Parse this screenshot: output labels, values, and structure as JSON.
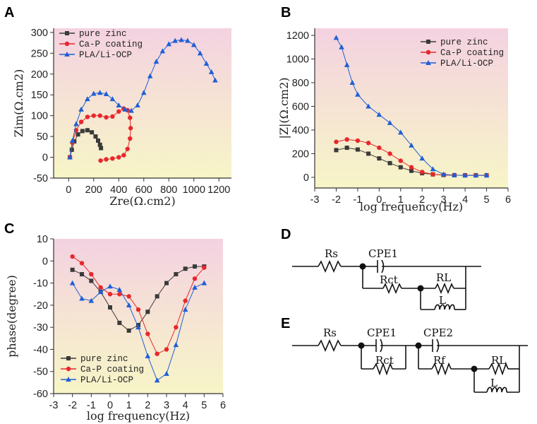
{
  "colors": {
    "zinc": "#3a3a3a",
    "cap": "#e8272c",
    "pla": "#1f5fd6",
    "bg_top": "#f4d2e1",
    "bg_bottom": "#f7f5c7"
  },
  "legend": [
    "pure zinc",
    "Ca-P coating",
    "PLA/Li-OCP"
  ],
  "circuit_d": {
    "letter": "D",
    "labels": [
      "Rs",
      "CPE1",
      "Rct",
      "RL",
      "L"
    ]
  },
  "circuit_e": {
    "letter": "E",
    "labels": [
      "Rs",
      "CPE1",
      "CPE2",
      "Rct",
      "Rf",
      "RL",
      "L"
    ]
  },
  "chart_data": [
    {
      "panel": "A",
      "type": "scatter",
      "xlabel": "Zre(Ω.cm2)",
      "ylabel": "Zim(Ω.cm2)",
      "xlim": [
        -120,
        1300
      ],
      "ylim": [
        -50,
        310
      ],
      "xticks": [
        0,
        200,
        400,
        600,
        800,
        1000,
        1200
      ],
      "yticks": [
        -50,
        0,
        50,
        100,
        150,
        200,
        250,
        300
      ],
      "series": [
        {
          "name": "pure zinc",
          "marker": "square",
          "points": [
            [
              10,
              0
            ],
            [
              25,
              18
            ],
            [
              45,
              38
            ],
            [
              75,
              55
            ],
            [
              110,
              63
            ],
            [
              150,
              65
            ],
            [
              185,
              60
            ],
            [
              215,
              50
            ],
            [
              235,
              40
            ],
            [
              250,
              30
            ],
            [
              258,
              22
            ]
          ]
        },
        {
          "name": "Ca-P coating",
          "marker": "circle",
          "points": [
            [
              10,
              0
            ],
            [
              30,
              35
            ],
            [
              60,
              65
            ],
            [
              100,
              85
            ],
            [
              150,
              97
            ],
            [
              200,
              100
            ],
            [
              250,
              100
            ],
            [
              300,
              96
            ],
            [
              350,
              98
            ],
            [
              400,
              110
            ],
            [
              440,
              117
            ],
            [
              470,
              113
            ],
            [
              490,
              95
            ],
            [
              495,
              70
            ],
            [
              490,
              45
            ],
            [
              470,
              20
            ],
            [
              440,
              5
            ],
            [
              400,
              0
            ],
            [
              350,
              -3
            ],
            [
              300,
              -5
            ],
            [
              255,
              -8
            ]
          ]
        },
        {
          "name": "PLA/Li-OCP",
          "marker": "triangle",
          "points": [
            [
              10,
              0
            ],
            [
              30,
              40
            ],
            [
              60,
              80
            ],
            [
              100,
              115
            ],
            [
              150,
              140
            ],
            [
              200,
              153
            ],
            [
              250,
              155
            ],
            [
              300,
              152
            ],
            [
              350,
              140
            ],
            [
              400,
              125
            ],
            [
              450,
              115
            ],
            [
              500,
              112
            ],
            [
              550,
              125
            ],
            [
              600,
              155
            ],
            [
              650,
              195
            ],
            [
              700,
              230
            ],
            [
              750,
              255
            ],
            [
              800,
              272
            ],
            [
              850,
              280
            ],
            [
              900,
              282
            ],
            [
              950,
              280
            ],
            [
              1000,
              270
            ],
            [
              1050,
              250
            ],
            [
              1100,
              225
            ],
            [
              1140,
              205
            ],
            [
              1170,
              185
            ]
          ]
        }
      ]
    },
    {
      "panel": "B",
      "type": "scatter",
      "xlabel": "log frequency(Hz)",
      "ylabel": "|Z|(Ω.cm2)",
      "xlim": [
        -3,
        6
      ],
      "ylim": [
        -90,
        1260
      ],
      "xticks": [
        -3,
        -2,
        -1,
        0,
        1,
        2,
        3,
        4,
        5,
        6
      ],
      "yticks": [
        0,
        200,
        400,
        600,
        800,
        1000,
        1200
      ],
      "series": [
        {
          "name": "pure zinc",
          "marker": "square",
          "points": [
            [
              -2,
              230
            ],
            [
              -1.5,
              250
            ],
            [
              -1,
              235
            ],
            [
              -0.5,
              200
            ],
            [
              0,
              160
            ],
            [
              0.5,
              120
            ],
            [
              1,
              85
            ],
            [
              1.5,
              55
            ],
            [
              2,
              35
            ],
            [
              2.5,
              25
            ],
            [
              3,
              20
            ],
            [
              3.5,
              18
            ],
            [
              4,
              17
            ],
            [
              4.5,
              17
            ],
            [
              5,
              17
            ]
          ]
        },
        {
          "name": "Ca-P coating",
          "marker": "circle",
          "points": [
            [
              -2,
              300
            ],
            [
              -1.5,
              320
            ],
            [
              -1,
              310
            ],
            [
              -0.5,
              290
            ],
            [
              0,
              250
            ],
            [
              0.5,
              200
            ],
            [
              1,
              140
            ],
            [
              1.5,
              85
            ],
            [
              2,
              45
            ],
            [
              2.5,
              25
            ],
            [
              3,
              20
            ],
            [
              3.5,
              18
            ],
            [
              4,
              17
            ],
            [
              4.5,
              17
            ],
            [
              5,
              17
            ]
          ]
        },
        {
          "name": "PLA/Li-OCP",
          "marker": "triangle",
          "points": [
            [
              -2,
              1180
            ],
            [
              -1.75,
              1100
            ],
            [
              -1.5,
              950
            ],
            [
              -1.25,
              800
            ],
            [
              -1,
              700
            ],
            [
              -0.5,
              600
            ],
            [
              0,
              530
            ],
            [
              0.5,
              460
            ],
            [
              1,
              380
            ],
            [
              1.5,
              270
            ],
            [
              2,
              160
            ],
            [
              2.5,
              70
            ],
            [
              3,
              25
            ],
            [
              3.5,
              18
            ],
            [
              4,
              17
            ],
            [
              4.5,
              17
            ],
            [
              5,
              17
            ]
          ]
        }
      ]
    },
    {
      "panel": "C",
      "type": "scatter",
      "xlabel": "log frequency(Hz)",
      "ylabel": "phase(degree)",
      "xlim": [
        -3,
        6
      ],
      "ylim": [
        -60,
        10
      ],
      "xticks": [
        -3,
        -2,
        -1,
        0,
        1,
        2,
        3,
        4,
        5,
        6
      ],
      "yticks": [
        10,
        0,
        -10,
        -20,
        -30,
        -40,
        -50,
        -60
      ],
      "series": [
        {
          "name": "pure zinc",
          "marker": "square",
          "points": [
            [
              -2,
              -4
            ],
            [
              -1.5,
              -6
            ],
            [
              -1,
              -9
            ],
            [
              -0.5,
              -14
            ],
            [
              0,
              -21
            ],
            [
              0.5,
              -28
            ],
            [
              1,
              -31.5
            ],
            [
              1.5,
              -29
            ],
            [
              2,
              -23
            ],
            [
              2.5,
              -16
            ],
            [
              3,
              -10
            ],
            [
              3.5,
              -6
            ],
            [
              4,
              -3.5
            ],
            [
              4.5,
              -2.5
            ],
            [
              5,
              -2.5
            ]
          ]
        },
        {
          "name": "Ca-P coating",
          "marker": "circle",
          "points": [
            [
              -2,
              2
            ],
            [
              -1.5,
              -1
            ],
            [
              -1,
              -6
            ],
            [
              -0.5,
              -12
            ],
            [
              0,
              -15
            ],
            [
              0.5,
              -15
            ],
            [
              1,
              -16
            ],
            [
              1.5,
              -22
            ],
            [
              2,
              -33
            ],
            [
              2.5,
              -42
            ],
            [
              3,
              -40
            ],
            [
              3.5,
              -30
            ],
            [
              4,
              -18
            ],
            [
              4.5,
              -8
            ],
            [
              5,
              -3
            ]
          ]
        },
        {
          "name": "PLA/Li-OCP",
          "marker": "triangle",
          "points": [
            [
              -2,
              -10
            ],
            [
              -1.5,
              -17
            ],
            [
              -1,
              -18
            ],
            [
              -0.5,
              -14
            ],
            [
              0,
              -11.5
            ],
            [
              0.5,
              -13
            ],
            [
              1,
              -20
            ],
            [
              1.5,
              -30
            ],
            [
              2,
              -43
            ],
            [
              2.5,
              -54
            ],
            [
              3,
              -51
            ],
            [
              3.5,
              -38
            ],
            [
              4,
              -22
            ],
            [
              4.5,
              -12
            ],
            [
              5,
              -10
            ]
          ]
        }
      ]
    }
  ]
}
